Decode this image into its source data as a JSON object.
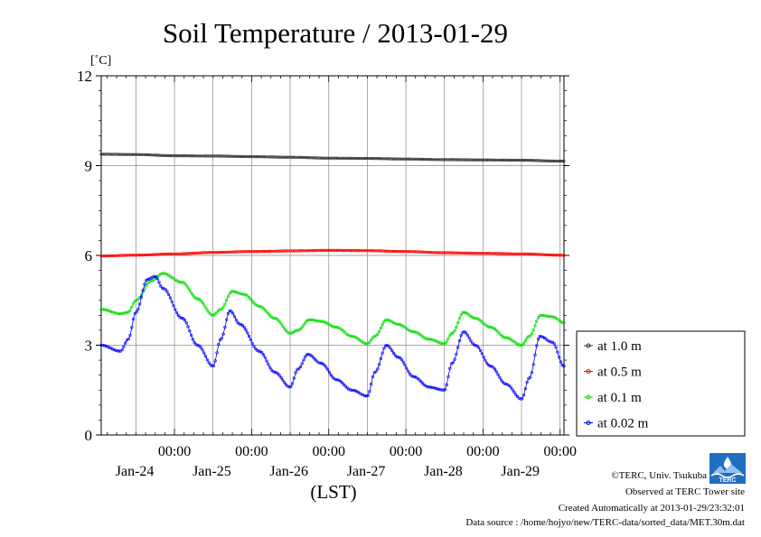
{
  "chart_data": {
    "type": "line",
    "title": "Soil Temperature / 2013-01-29",
    "unit_label": "[˚C]",
    "xlabel": "(LST)",
    "ylim": [
      0,
      12
    ],
    "yticks": [
      0,
      3,
      6,
      9,
      12
    ],
    "xlim_days": [
      -0.95,
      5.05
    ],
    "x_ticks": [
      {
        "day": 0,
        "time": "00:00",
        "date": "Jan-24"
      },
      {
        "day": 1,
        "time": "00:00",
        "date": "Jan-25"
      },
      {
        "day": 2,
        "time": "00:00",
        "date": "Jan-26"
      },
      {
        "day": 3,
        "time": "00:00",
        "date": "Jan-27"
      },
      {
        "day": 4,
        "time": "00:00",
        "date": "Jan-28"
      },
      {
        "day": 5,
        "time": "00:00",
        "date": "Jan-29"
      }
    ],
    "grid": true,
    "legend_position": "right",
    "series": [
      {
        "name": "at 1.0 m",
        "color": "#333333",
        "x": [
          -0.95,
          -0.5,
          0,
          0.5,
          1,
          1.5,
          2,
          2.5,
          3,
          3.5,
          4,
          4.5,
          5,
          5.05
        ],
        "y": [
          9.38,
          9.37,
          9.33,
          9.32,
          9.3,
          9.28,
          9.25,
          9.24,
          9.22,
          9.2,
          9.19,
          9.18,
          9.15,
          9.15
        ]
      },
      {
        "name": "at 0.5 m",
        "color": "#ff0000",
        "x": [
          -0.95,
          -0.5,
          0,
          0.5,
          1,
          1.5,
          2,
          2.5,
          3,
          3.5,
          4,
          4.5,
          5,
          5.05
        ],
        "y": [
          5.98,
          6.01,
          6.05,
          6.1,
          6.13,
          6.15,
          6.17,
          6.16,
          6.13,
          6.09,
          6.07,
          6.05,
          6.01,
          6.0
        ]
      },
      {
        "name": "at 0.1 m",
        "color": "#00dd00",
        "x": [
          -0.95,
          -0.7,
          -0.6,
          -0.5,
          -0.3,
          -0.15,
          0.1,
          0.3,
          0.5,
          0.6,
          0.75,
          0.9,
          1.1,
          1.3,
          1.5,
          1.6,
          1.75,
          1.9,
          2.1,
          2.3,
          2.5,
          2.6,
          2.75,
          2.9,
          3.1,
          3.3,
          3.5,
          3.6,
          3.75,
          3.9,
          4.1,
          4.3,
          4.5,
          4.6,
          4.75,
          4.9,
          5.05
        ],
        "y": [
          4.2,
          4.05,
          4.1,
          4.5,
          5.15,
          5.4,
          5.1,
          4.55,
          4.0,
          4.2,
          4.8,
          4.7,
          4.3,
          3.9,
          3.4,
          3.5,
          3.85,
          3.8,
          3.6,
          3.3,
          3.05,
          3.3,
          3.85,
          3.7,
          3.45,
          3.2,
          3.05,
          3.4,
          4.1,
          3.9,
          3.6,
          3.25,
          3.0,
          3.3,
          4.0,
          3.95,
          3.75
        ]
      },
      {
        "name": "at 0.02 m",
        "color": "#0000ff",
        "x": [
          -0.95,
          -0.7,
          -0.6,
          -0.5,
          -0.35,
          -0.25,
          -0.15,
          0.1,
          0.3,
          0.5,
          0.6,
          0.72,
          0.85,
          1.1,
          1.3,
          1.5,
          1.6,
          1.73,
          1.9,
          2.1,
          2.3,
          2.5,
          2.6,
          2.75,
          2.9,
          3.1,
          3.3,
          3.5,
          3.6,
          3.75,
          3.9,
          4.1,
          4.3,
          4.5,
          4.6,
          4.74,
          4.9,
          5.05
        ],
        "y": [
          3.0,
          2.8,
          3.2,
          4.1,
          5.2,
          5.3,
          4.9,
          3.9,
          3.0,
          2.3,
          3.2,
          4.15,
          3.7,
          2.8,
          2.1,
          1.6,
          2.2,
          2.7,
          2.4,
          1.85,
          1.5,
          1.3,
          2.1,
          3.0,
          2.6,
          1.95,
          1.6,
          1.5,
          2.4,
          3.45,
          3.0,
          2.3,
          1.7,
          1.2,
          1.9,
          3.3,
          3.1,
          2.3
        ]
      }
    ]
  },
  "credits": {
    "copyright": "©TERC, Univ. Tsukuba",
    "observed": "Observed at TERC Tower site",
    "created": "Created Automatically at 2013-01-29/23:32:01",
    "source": "Data source : /home/hojyo/new/TERC-data/sorted_data/MET.30m.dat"
  },
  "logo": {
    "text": "TERC",
    "color": "#1f6fc0"
  }
}
